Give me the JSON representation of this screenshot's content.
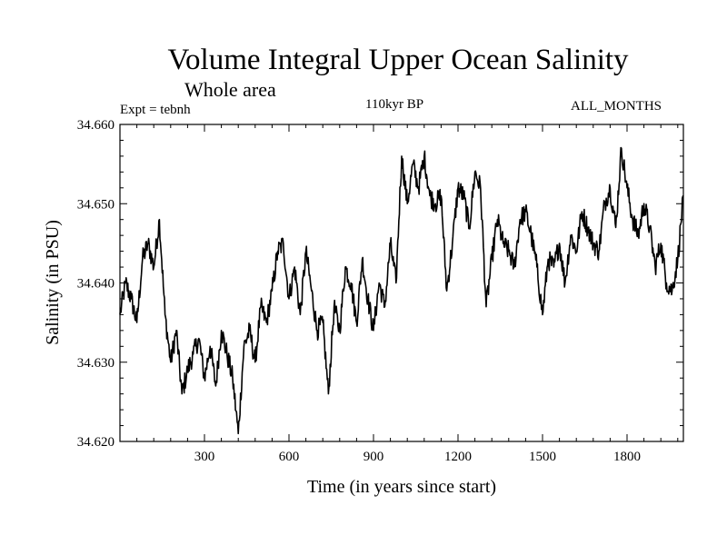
{
  "chart_data": {
    "type": "line",
    "title": "Volume Integral Upper Ocean Salinity",
    "subtitle": "Whole area",
    "left_label": "Expt = tebnh",
    "center_label": "110kyr BP",
    "right_label": "ALL_MONTHS",
    "xlabel": "Time (in years since start)",
    "ylabel": "Salinity (in PSU)",
    "xlim": [
      0,
      2000
    ],
    "ylim": [
      34.62,
      34.66
    ],
    "xticks": [
      300,
      600,
      900,
      1200,
      1500,
      1800
    ],
    "xtick_labels": [
      "300",
      "600",
      "900",
      "1200",
      "1500",
      "1800"
    ],
    "yticks": [
      34.62,
      34.63,
      34.64,
      34.65,
      34.66
    ],
    "ytick_labels": [
      "34.620",
      "34.630",
      "34.640",
      "34.650",
      "34.660"
    ],
    "series": [
      {
        "name": "Salinity",
        "color": "#000000",
        "x": [
          0,
          20,
          40,
          60,
          80,
          100,
          120,
          140,
          160,
          180,
          200,
          220,
          240,
          260,
          280,
          300,
          320,
          340,
          360,
          380,
          400,
          420,
          440,
          460,
          480,
          500,
          520,
          540,
          560,
          580,
          600,
          620,
          640,
          660,
          680,
          700,
          720,
          740,
          760,
          780,
          800,
          820,
          840,
          860,
          880,
          900,
          920,
          940,
          960,
          980,
          1000,
          1020,
          1040,
          1060,
          1080,
          1100,
          1120,
          1140,
          1160,
          1180,
          1200,
          1220,
          1240,
          1260,
          1280,
          1300,
          1320,
          1340,
          1360,
          1380,
          1400,
          1420,
          1440,
          1460,
          1480,
          1500,
          1520,
          1540,
          1560,
          1580,
          1600,
          1620,
          1640,
          1660,
          1680,
          1700,
          1720,
          1740,
          1760,
          1780,
          1800,
          1820,
          1840,
          1860,
          1880,
          1900,
          1920,
          1940,
          1960,
          1980,
          2000
        ],
        "values": [
          34.636,
          34.64,
          34.638,
          34.635,
          34.643,
          34.645,
          34.642,
          34.648,
          34.636,
          34.63,
          34.634,
          34.626,
          34.629,
          34.631,
          34.633,
          34.628,
          34.632,
          34.627,
          34.634,
          34.631,
          34.628,
          34.621,
          34.632,
          34.634,
          34.63,
          34.637,
          34.635,
          34.639,
          34.644,
          34.645,
          34.638,
          34.642,
          34.636,
          34.644,
          34.639,
          34.634,
          34.635,
          34.626,
          34.637,
          34.634,
          34.642,
          34.64,
          34.635,
          34.643,
          34.638,
          34.634,
          34.64,
          34.637,
          34.645,
          34.64,
          34.656,
          34.65,
          34.655,
          34.652,
          34.656,
          34.651,
          34.65,
          34.651,
          34.639,
          34.645,
          34.652,
          34.651,
          34.647,
          34.654,
          34.652,
          34.637,
          34.643,
          34.648,
          34.645,
          34.644,
          34.642,
          34.648,
          34.649,
          34.646,
          34.642,
          34.636,
          34.643,
          34.642,
          34.645,
          34.64,
          34.646,
          34.644,
          34.649,
          34.647,
          34.645,
          34.644,
          34.65,
          34.652,
          34.647,
          34.657,
          34.652,
          34.648,
          34.646,
          34.65,
          34.647,
          34.642,
          34.645,
          34.64,
          34.639,
          34.643,
          34.651
        ]
      }
    ]
  }
}
